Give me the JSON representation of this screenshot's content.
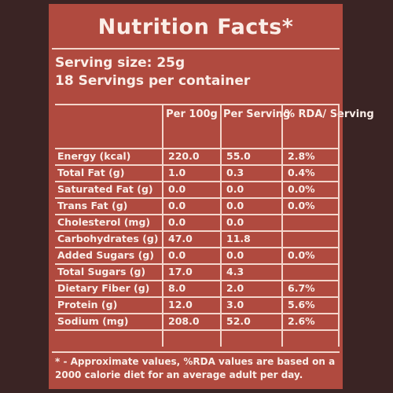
{
  "title": "Nutrition Facts*",
  "serving_size": "Serving size: 25g",
  "servings_per_container": "18 Servings per container",
  "table": {
    "headers": [
      "",
      "Per 100g",
      "Per Serving",
      "% RDA/ Serving"
    ],
    "rows": [
      {
        "nutrient": "Energy (kcal)",
        "per_100g": "220.0",
        "per_serving": "55.0",
        "rda": "2.8%"
      },
      {
        "nutrient": "Total Fat (g)",
        "per_100g": "1.0",
        "per_serving": "0.3",
        "rda": "0.4%"
      },
      {
        "nutrient": "Saturated Fat (g)",
        "per_100g": "0.0",
        "per_serving": "0.0",
        "rda": "0.0%"
      },
      {
        "nutrient": "Trans Fat (g)",
        "per_100g": "0.0",
        "per_serving": "0.0",
        "rda": "0.0%"
      },
      {
        "nutrient": "Cholesterol (mg)",
        "per_100g": "0.0",
        "per_serving": "0.0",
        "rda": ""
      },
      {
        "nutrient": "Carbohydrates (g)",
        "per_100g": "47.0",
        "per_serving": "11.8",
        "rda": ""
      },
      {
        "nutrient": "Added Sugars (g)",
        "per_100g": "0.0",
        "per_serving": "0.0",
        "rda": "0.0%"
      },
      {
        "nutrient": "Total Sugars (g)",
        "per_100g": "17.0",
        "per_serving": "4.3",
        "rda": ""
      },
      {
        "nutrient": "Dietary Fiber (g)",
        "per_100g": "8.0",
        "per_serving": "2.0",
        "rda": "6.7%"
      },
      {
        "nutrient": "Protein (g)",
        "per_100g": "12.0",
        "per_serving": "3.0",
        "rda": "5.6%"
      },
      {
        "nutrient": "Sodium (mg)",
        "per_100g": "208.0",
        "per_serving": "52.0",
        "rda": "2.6%"
      }
    ]
  },
  "footnote": "* - Approximate values, %RDA values are based on a 2000 calorie diet for an average adult per day.",
  "colors": {
    "panel": "#b04a3f",
    "text": "#fbeee8",
    "background": "#3a2424"
  }
}
